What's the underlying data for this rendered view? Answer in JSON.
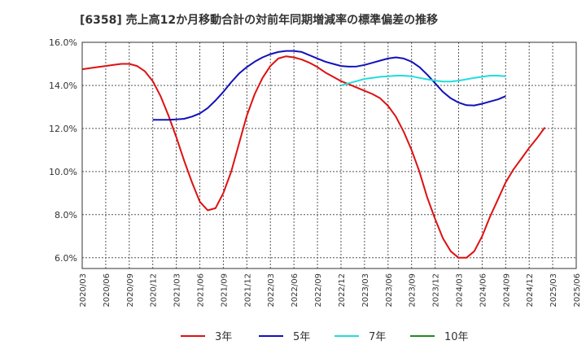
{
  "title": "[6358]  売上高12か月移動合計の対前年同期増減率の標準偏差の推移",
  "chart_data": {
    "type": "line",
    "title": "[6358]  売上高12か月移動合計の対前年同期増減率の標準偏差の推移",
    "xlabel": "",
    "ylabel": "",
    "ylim": [
      5.5,
      16.0
    ],
    "y_ticks": [
      "16.0%",
      "14.0%",
      "12.0%",
      "10.0%",
      "8.0%",
      "6.0%"
    ],
    "y_tick_values": [
      16,
      14,
      12,
      10,
      8,
      6
    ],
    "x_ticks": [
      "2020/03",
      "2020/06",
      "2020/09",
      "2020/12",
      "2021/03",
      "2021/06",
      "2021/09",
      "2021/12",
      "2022/03",
      "2022/06",
      "2022/09",
      "2022/12",
      "2023/03",
      "2023/06",
      "2023/09",
      "2023/12",
      "2024/03",
      "2024/06",
      "2024/09",
      "2024/12",
      "2025/03",
      "2025/06"
    ],
    "grid": true,
    "legend_position": "bottom",
    "series": [
      {
        "name": "3年",
        "color": "#dd1111",
        "start": "2020/03",
        "values": [
          14.75,
          14.8,
          14.85,
          14.9,
          14.95,
          15.0,
          15.0,
          14.9,
          14.65,
          14.2,
          13.5,
          12.6,
          11.6,
          10.5,
          9.5,
          8.6,
          8.2,
          8.3,
          9.0,
          10.0,
          11.3,
          12.6,
          13.6,
          14.35,
          14.9,
          15.25,
          15.35,
          15.3,
          15.2,
          15.05,
          14.85,
          14.6,
          14.4,
          14.2,
          14.05,
          13.9,
          13.75,
          13.6,
          13.4,
          13.05,
          12.55,
          11.85,
          11.0,
          10.0,
          8.8,
          7.8,
          6.9,
          6.3,
          6.0,
          6.0,
          6.3,
          7.0,
          7.9,
          8.7,
          9.5,
          10.1,
          10.6,
          11.1,
          11.55,
          12.05
        ]
      },
      {
        "name": "5年",
        "color": "#1111bb",
        "start": "2020/12",
        "values": [
          null,
          null,
          null,
          null,
          null,
          null,
          null,
          null,
          null,
          12.4,
          12.4,
          12.4,
          12.42,
          12.45,
          12.55,
          12.7,
          12.95,
          13.3,
          13.7,
          14.15,
          14.55,
          14.85,
          15.1,
          15.3,
          15.45,
          15.55,
          15.6,
          15.6,
          15.55,
          15.4,
          15.25,
          15.1,
          15.0,
          14.9,
          14.87,
          14.88,
          14.95,
          15.05,
          15.15,
          15.25,
          15.3,
          15.25,
          15.1,
          14.85,
          14.5,
          14.1,
          13.7,
          13.4,
          13.2,
          13.08,
          13.07,
          13.15,
          13.25,
          13.35,
          13.5
        ]
      },
      {
        "name": "7年",
        "color": "#22dddd",
        "start": "2022/12",
        "values": [
          null,
          null,
          null,
          null,
          null,
          null,
          null,
          null,
          null,
          null,
          null,
          null,
          null,
          null,
          null,
          null,
          null,
          null,
          null,
          null,
          null,
          null,
          null,
          null,
          null,
          null,
          null,
          null,
          null,
          null,
          null,
          null,
          null,
          14.0,
          14.1,
          14.2,
          14.3,
          14.35,
          14.4,
          14.42,
          14.45,
          14.45,
          14.42,
          14.35,
          14.28,
          14.22,
          14.18,
          14.18,
          14.22,
          14.28,
          14.35,
          14.4,
          14.45,
          14.45,
          14.42
        ]
      },
      {
        "name": "10年",
        "color": "#228822",
        "start": "",
        "values": []
      }
    ]
  }
}
